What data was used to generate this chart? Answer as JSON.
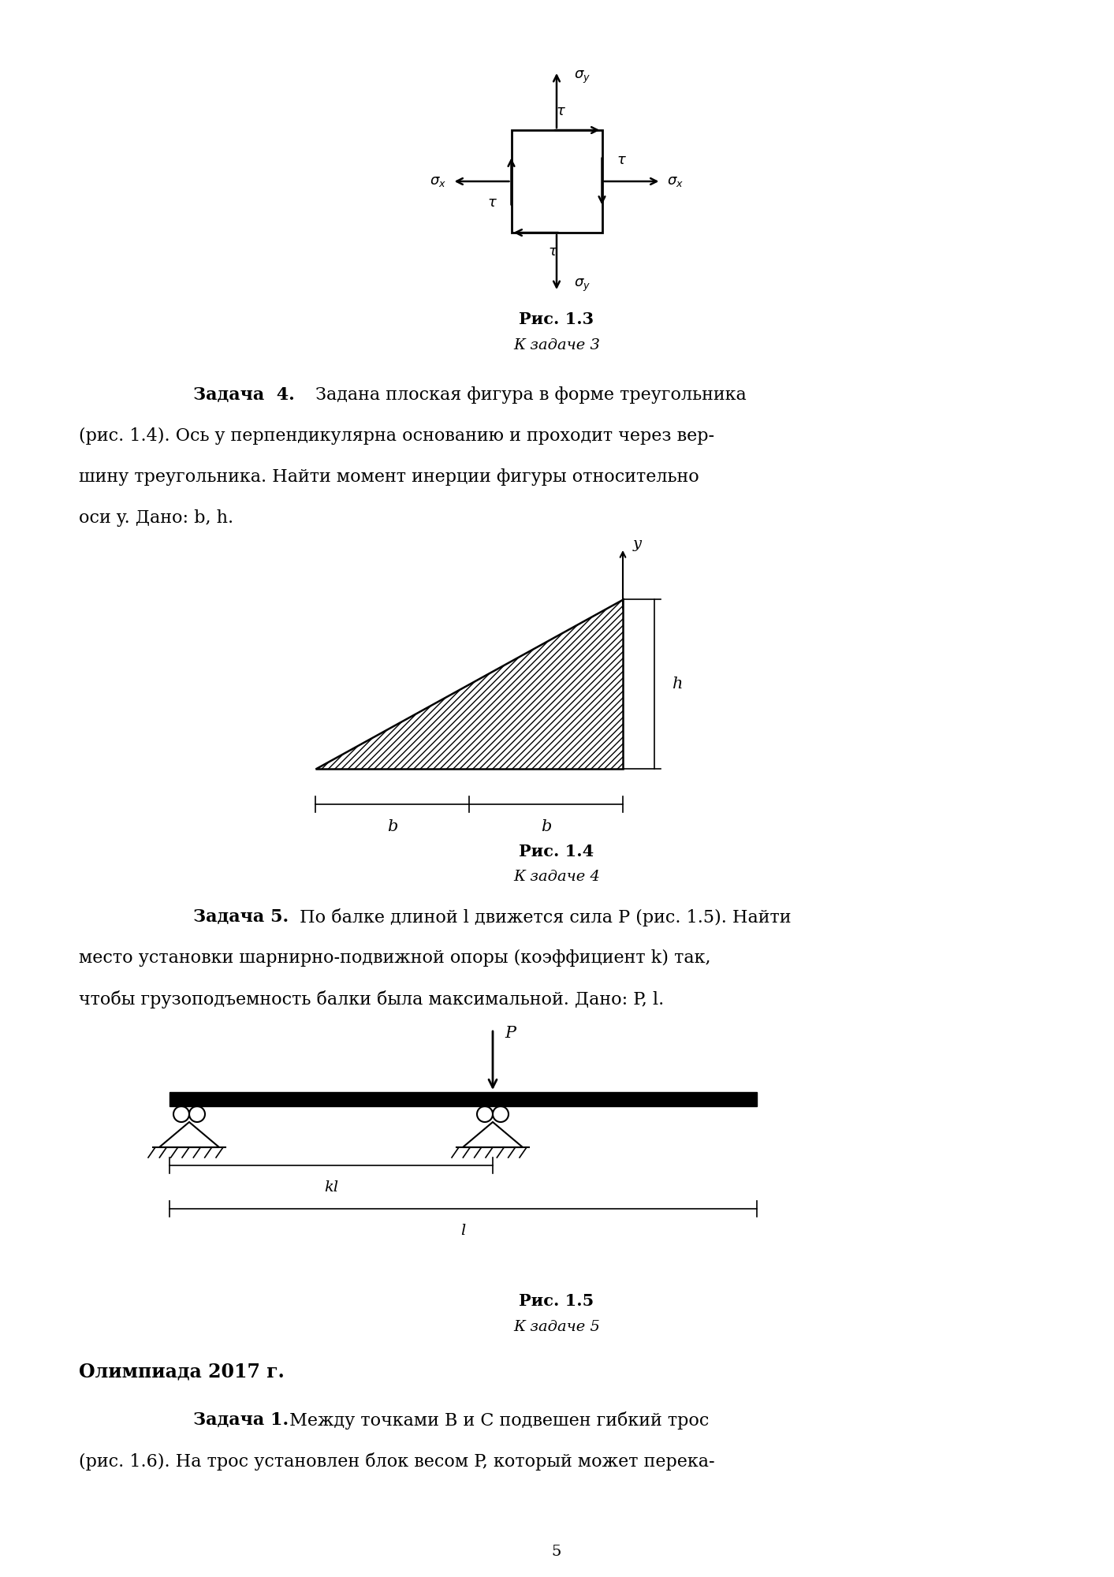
{
  "bg_color": "#ffffff",
  "fig_width": 14.13,
  "fig_height": 20.0,
  "page_number": "5",
  "fig13_caption_bold": "Рис. 1.3",
  "fig13_caption_italic": "К задаче 3",
  "zadacha4_line1_bold": "Задача  4.",
  "zadacha4_line1_rest": " Задана плоская фигура в форме треугольника",
  "zadacha4_lines": [
    "(рис. 1.4). Ось y перпендикулярна основанию и проходит через вер-",
    "шину треугольника. Найти момент инерции фигуры относительно",
    "оси y. Дано: b, h."
  ],
  "fig14_caption_bold": "Рис. 1.4",
  "fig14_caption_italic": "К задаче 4",
  "zadacha5_line1_bold": "Задача 5.",
  "zadacha5_line1_rest": " По балке длиной l движется сила P (рис. 1.5). Найти",
  "zadacha5_lines": [
    "место установки шарнирно-подвижной опоры (коэффициент k) так,",
    "чтобы грузоподъемность балки была максимальной. Дано: P, l."
  ],
  "fig15_caption_bold": "Рис. 1.5",
  "fig15_caption_italic": "К задаче 5",
  "olimpiada_header": "Олимпиада 2017 г.",
  "zadacha1_2017_bold": "Задача 1.",
  "zadacha1_2017_rest": " Между точками B и C подвешен гибкий трос",
  "zadacha1_2017_lines": [
    "(рис. 1.6). На трос установлен блок весом P, который может перека-"
  ]
}
